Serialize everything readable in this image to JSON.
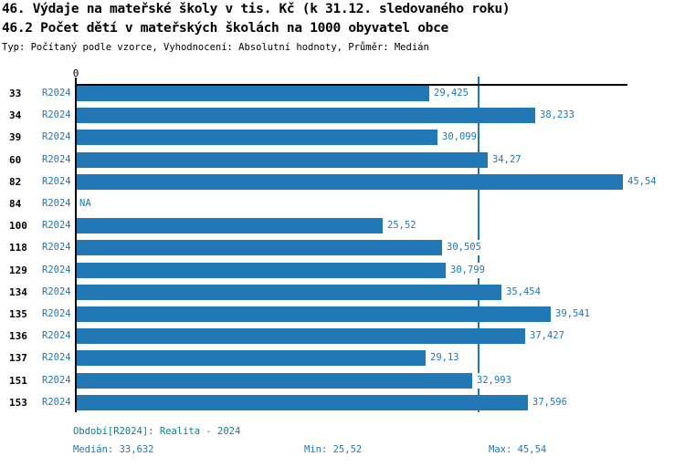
{
  "header": {
    "title_line1": "46. Výdaje na mateřské školy v tis. Kč (k 31.12. sledovaného roku)",
    "title_line2": "46.2 Počet dětí v mateřských školách na 1000 obyvatel obce",
    "subtitle": "Typ: Počítaný podle vzorce, Vyhodnocení: Absolutní hodnoty, Průměr: Medián"
  },
  "chart_data": {
    "type": "bar",
    "orientation": "horizontal",
    "title": "46. Výdaje na mateřské školy v tis. Kč (k 31.12. sledovaného roku)",
    "axis": {
      "origin_label": "0",
      "xlim": [
        0,
        45.54
      ],
      "gridlines": false
    },
    "series_label": "R2024",
    "categories": [
      "33",
      "34",
      "39",
      "60",
      "82",
      "84",
      "100",
      "118",
      "129",
      "134",
      "135",
      "136",
      "137",
      "151",
      "153"
    ],
    "values": [
      29.425,
      38.233,
      30.099,
      34.27,
      45.54,
      null,
      25.52,
      30.505,
      30.799,
      35.454,
      39.541,
      37.427,
      29.13,
      32.993,
      37.596
    ],
    "value_labels": [
      "29,425",
      "38,233",
      "30,099",
      "34,27",
      "45,54",
      "NA",
      "25,52",
      "30,505",
      "30,799",
      "35,454",
      "39,541",
      "37,427",
      "29,13",
      "32,993",
      "37,596"
    ],
    "median_line": {
      "value": 33.632,
      "label": "Medián"
    },
    "colors": {
      "bar": "#2277b5",
      "median_line": "#1f77b4",
      "value_text": "#1f77b4",
      "series_text": "#1f77b4"
    }
  },
  "footer": {
    "period": "Období[R2024]: Realita - 2024",
    "median": "Medián: 33,632",
    "min": "Min: 25,52",
    "max": "Max: 45,54"
  }
}
